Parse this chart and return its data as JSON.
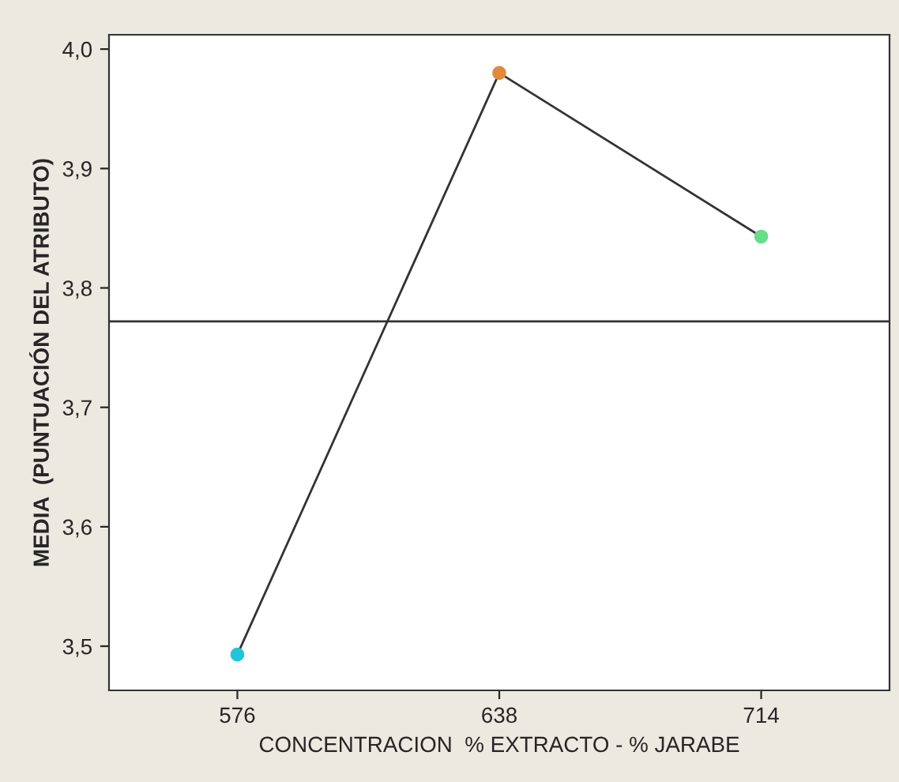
{
  "chart_data": {
    "type": "line",
    "xlabel": "CONCENTRACION  % EXTRACTO - % JARABE",
    "ylabel": "MEDIA  (PUNTUACIÓN DEL ATRIBUTO)",
    "categories": [
      "576",
      "638",
      "714"
    ],
    "series": [
      {
        "color": "#333333",
        "colors": [
          "#22c4d8",
          "#e08a3c",
          "#66dd88"
        ],
        "values": [
          3.493,
          3.98,
          3.843
        ]
      }
    ],
    "ylim": [
      3.463,
      4.012
    ],
    "yticks": [
      {
        "value": 3.5,
        "label": "3,5"
      },
      {
        "value": 3.6,
        "label": "3,6"
      },
      {
        "value": 3.7,
        "label": "3,7"
      },
      {
        "value": 3.8,
        "label": "3,8"
      },
      {
        "value": 3.9,
        "label": "3,9"
      },
      {
        "value": 4.0,
        "label": "4,0"
      }
    ],
    "ref_lines": [
      {
        "axis": "y",
        "value": 3.772,
        "color": "#333333"
      }
    ],
    "marker": "circle",
    "line_style": "solid",
    "grid": false,
    "legend": false
  }
}
